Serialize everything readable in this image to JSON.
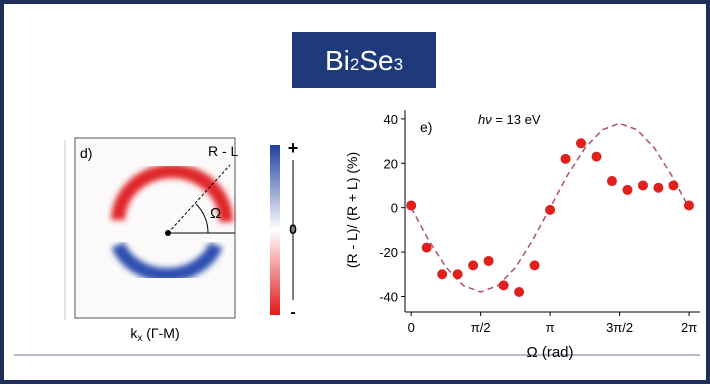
{
  "title": [
    "Bi",
    "2",
    "Se",
    "3"
  ],
  "panel_d": {
    "label": "d)",
    "line_label": "R - L",
    "angle_label": "Ω",
    "x_label": [
      "k",
      "x",
      " (Γ-M)"
    ],
    "colorbar_labels": [
      "+",
      "0",
      "-"
    ]
  },
  "chart_data": {
    "type": "scatter",
    "label": "e)",
    "annotation": [
      "hν",
      " = 13 eV"
    ],
    "x_label": "Ω (rad)",
    "y_label": "(R - L)/ (R + L) (%)",
    "x": [
      0,
      0.35,
      0.7,
      1.05,
      1.4,
      1.75,
      2.09,
      2.44,
      2.79,
      3.14,
      3.49,
      3.84,
      4.19,
      4.54,
      4.89,
      5.24,
      5.59,
      5.93,
      6.28
    ],
    "series": [
      {
        "color": "#e0201c",
        "values": [
          1,
          -18,
          -30,
          -30,
          -26,
          -24,
          -35,
          -38,
          -26,
          -1,
          22,
          29,
          23,
          12,
          8,
          10,
          9,
          10,
          1
        ]
      }
    ],
    "fit": {
      "color": "#b05070",
      "style": "dashed",
      "x": [
        0,
        0.39,
        0.79,
        1.18,
        1.57,
        1.96,
        2.36,
        2.75,
        3.14,
        3.53,
        3.93,
        4.32,
        4.71,
        5.11,
        5.5,
        5.89,
        6.28
      ],
      "values": [
        0,
        -14.5,
        -26.9,
        -35.1,
        -38,
        -35.1,
        -26.9,
        -14.5,
        0,
        14.5,
        26.9,
        35.1,
        38,
        35.1,
        26.9,
        14.5,
        0
      ]
    },
    "xlim": [
      -0.14,
      6.53
    ],
    "ylim": [
      -47,
      44
    ],
    "xticks": [
      0,
      {
        "value": 1.5708,
        "label": "π/2"
      },
      {
        "value": 3.1416,
        "label": "π"
      },
      {
        "value": 4.7124,
        "label": "3π/2"
      },
      {
        "value": 6.2832,
        "label": "2π"
      }
    ],
    "yticks": [
      -40,
      -20,
      0,
      20,
      40
    ]
  }
}
